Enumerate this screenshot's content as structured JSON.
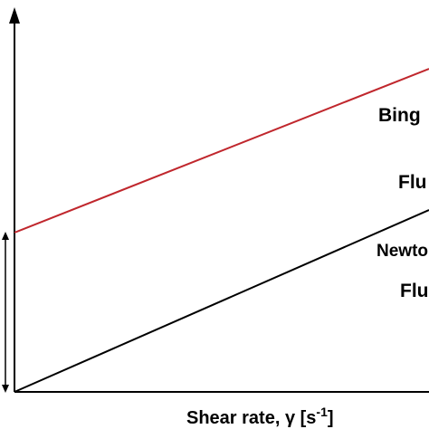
{
  "diagram": {
    "xlabel": {
      "text": "Shear rate, γ [s",
      "superscript": "-1",
      "suffix": "]"
    },
    "curves": [
      {
        "name": "bingham-line",
        "color": "#c0272d",
        "label_line1": "Bing",
        "label_line2": "Flu"
      },
      {
        "name": "newtonian-line",
        "color": "#000000",
        "label_line1": "Newto",
        "label_line2": "Flu"
      }
    ],
    "axis_color": "#000000"
  }
}
